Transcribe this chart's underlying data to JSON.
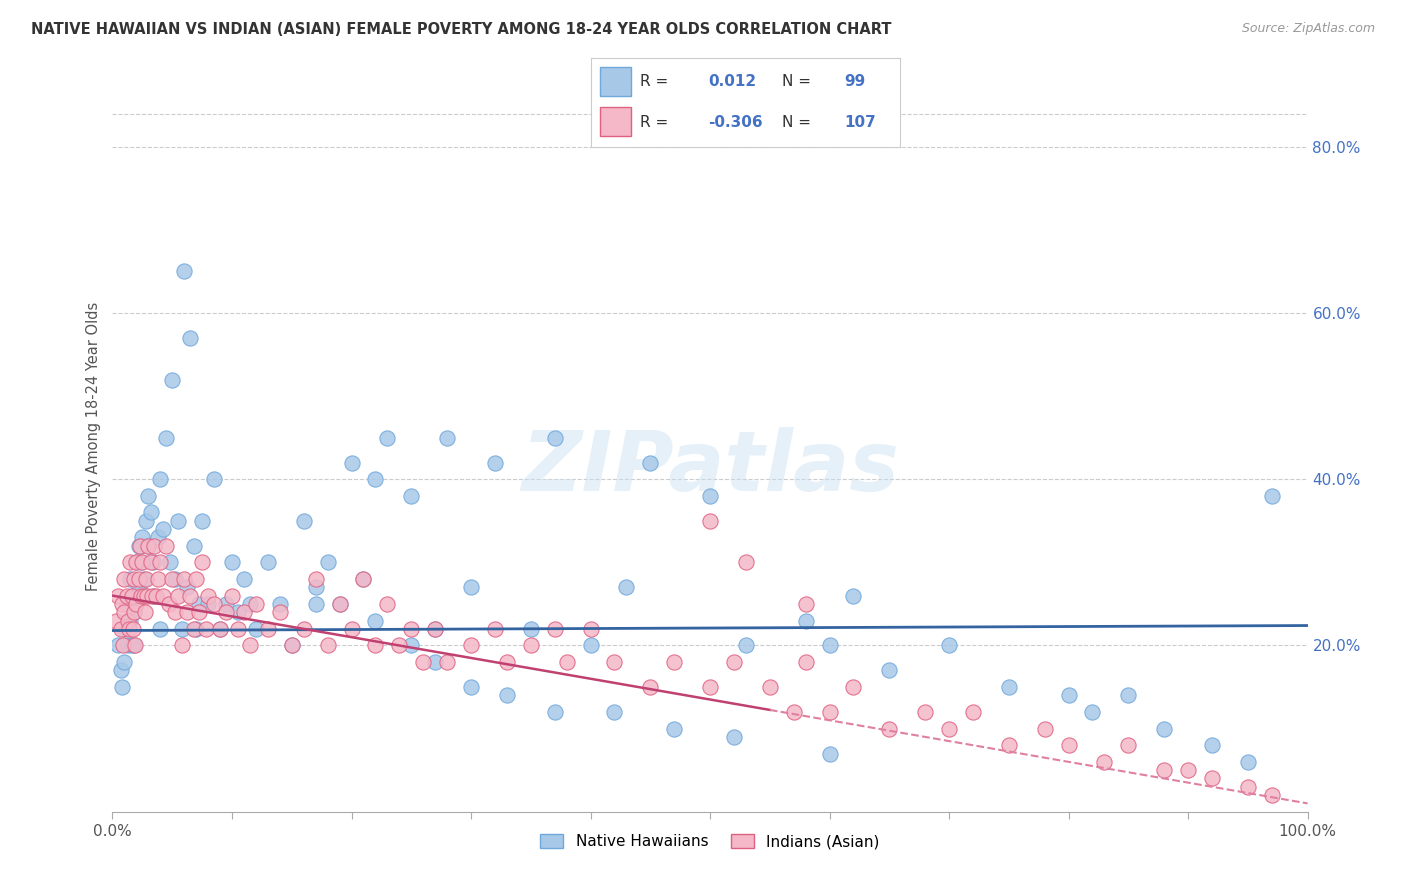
{
  "title": "NATIVE HAWAIIAN VS INDIAN (ASIAN) FEMALE POVERTY AMONG 18-24 YEAR OLDS CORRELATION CHART",
  "source": "Source: ZipAtlas.com",
  "ylabel": "Female Poverty Among 18-24 Year Olds",
  "xlim": [
    0,
    1.0
  ],
  "ylim": [
    0,
    0.88
  ],
  "right_yticks": [
    0.2,
    0.4,
    0.6,
    0.8
  ],
  "right_yticklabels": [
    "20.0%",
    "40.0%",
    "60.0%",
    "80.0%"
  ],
  "xticklabels_show": [
    "0.0%",
    "100.0%"
  ],
  "xticklabels_pos": [
    0.0,
    1.0
  ],
  "blue_marker_fill": "#a8c8e8",
  "blue_marker_edge": "#6fa8dc",
  "pink_marker_fill": "#f4b8c8",
  "pink_marker_edge": "#e06080",
  "trend_blue_color": "#3464a0",
  "trend_pink_solid_color": "#c04070",
  "trend_pink_dash_color": "#e080a0",
  "watermark": "ZIPatlas",
  "legend_label1": "Native Hawaiians",
  "legend_label2": "Indians (Asian)",
  "legend_R1": "0.012",
  "legend_N1": "99",
  "legend_R2": "-0.306",
  "legend_N2": "107",
  "grid_color": "#cccccc",
  "blue_x": [
    0.005,
    0.007,
    0.008,
    0.01,
    0.01,
    0.012,
    0.013,
    0.015,
    0.015,
    0.016,
    0.017,
    0.018,
    0.018,
    0.02,
    0.02,
    0.022,
    0.022,
    0.024,
    0.025,
    0.026,
    0.028,
    0.03,
    0.03,
    0.032,
    0.034,
    0.035,
    0.038,
    0.04,
    0.04,
    0.042,
    0.045,
    0.048,
    0.05,
    0.052,
    0.055,
    0.058,
    0.06,
    0.062,
    0.065,
    0.068,
    0.07,
    0.072,
    0.075,
    0.08,
    0.085,
    0.09,
    0.095,
    0.1,
    0.105,
    0.11,
    0.115,
    0.12,
    0.13,
    0.14,
    0.15,
    0.16,
    0.17,
    0.18,
    0.19,
    0.2,
    0.21,
    0.22,
    0.23,
    0.25,
    0.27,
    0.28,
    0.3,
    0.32,
    0.35,
    0.37,
    0.4,
    0.43,
    0.45,
    0.5,
    0.53,
    0.58,
    0.6,
    0.62,
    0.65,
    0.7,
    0.75,
    0.8,
    0.82,
    0.85,
    0.88,
    0.92,
    0.95,
    0.97,
    0.17,
    0.22,
    0.25,
    0.27,
    0.3,
    0.33,
    0.37,
    0.42,
    0.47,
    0.52,
    0.6
  ],
  "blue_y": [
    0.2,
    0.17,
    0.15,
    0.22,
    0.18,
    0.25,
    0.2,
    0.28,
    0.23,
    0.2,
    0.26,
    0.24,
    0.2,
    0.3,
    0.26,
    0.32,
    0.27,
    0.3,
    0.33,
    0.28,
    0.35,
    0.38,
    0.32,
    0.36,
    0.3,
    0.26,
    0.33,
    0.4,
    0.22,
    0.34,
    0.45,
    0.3,
    0.52,
    0.28,
    0.35,
    0.22,
    0.65,
    0.27,
    0.57,
    0.32,
    0.22,
    0.25,
    0.35,
    0.25,
    0.4,
    0.22,
    0.25,
    0.3,
    0.24,
    0.28,
    0.25,
    0.22,
    0.3,
    0.25,
    0.2,
    0.35,
    0.25,
    0.3,
    0.25,
    0.42,
    0.28,
    0.4,
    0.45,
    0.38,
    0.22,
    0.45,
    0.27,
    0.42,
    0.22,
    0.45,
    0.2,
    0.27,
    0.42,
    0.38,
    0.2,
    0.23,
    0.2,
    0.26,
    0.17,
    0.2,
    0.15,
    0.14,
    0.12,
    0.14,
    0.1,
    0.08,
    0.06,
    0.38,
    0.27,
    0.23,
    0.2,
    0.18,
    0.15,
    0.14,
    0.12,
    0.12,
    0.1,
    0.09,
    0.07
  ],
  "pink_x": [
    0.003,
    0.005,
    0.007,
    0.008,
    0.009,
    0.01,
    0.01,
    0.012,
    0.013,
    0.014,
    0.015,
    0.016,
    0.017,
    0.018,
    0.018,
    0.019,
    0.02,
    0.02,
    0.022,
    0.023,
    0.024,
    0.025,
    0.026,
    0.027,
    0.028,
    0.029,
    0.03,
    0.032,
    0.033,
    0.035,
    0.036,
    0.038,
    0.04,
    0.042,
    0.045,
    0.047,
    0.05,
    0.052,
    0.055,
    0.058,
    0.06,
    0.062,
    0.065,
    0.068,
    0.07,
    0.072,
    0.075,
    0.078,
    0.08,
    0.085,
    0.09,
    0.095,
    0.1,
    0.105,
    0.11,
    0.115,
    0.12,
    0.13,
    0.14,
    0.15,
    0.16,
    0.17,
    0.18,
    0.19,
    0.2,
    0.21,
    0.22,
    0.23,
    0.24,
    0.25,
    0.26,
    0.27,
    0.28,
    0.3,
    0.32,
    0.33,
    0.35,
    0.37,
    0.38,
    0.4,
    0.42,
    0.45,
    0.47,
    0.5,
    0.52,
    0.55,
    0.57,
    0.58,
    0.6,
    0.62,
    0.65,
    0.68,
    0.7,
    0.72,
    0.75,
    0.78,
    0.8,
    0.83,
    0.85,
    0.88,
    0.9,
    0.92,
    0.95,
    0.97,
    0.5,
    0.53,
    0.58
  ],
  "pink_y": [
    0.23,
    0.26,
    0.22,
    0.25,
    0.2,
    0.28,
    0.24,
    0.26,
    0.23,
    0.22,
    0.3,
    0.26,
    0.22,
    0.28,
    0.24,
    0.2,
    0.3,
    0.25,
    0.28,
    0.32,
    0.26,
    0.3,
    0.26,
    0.24,
    0.28,
    0.26,
    0.32,
    0.3,
    0.26,
    0.32,
    0.26,
    0.28,
    0.3,
    0.26,
    0.32,
    0.25,
    0.28,
    0.24,
    0.26,
    0.2,
    0.28,
    0.24,
    0.26,
    0.22,
    0.28,
    0.24,
    0.3,
    0.22,
    0.26,
    0.25,
    0.22,
    0.24,
    0.26,
    0.22,
    0.24,
    0.2,
    0.25,
    0.22,
    0.24,
    0.2,
    0.22,
    0.28,
    0.2,
    0.25,
    0.22,
    0.28,
    0.2,
    0.25,
    0.2,
    0.22,
    0.18,
    0.22,
    0.18,
    0.2,
    0.22,
    0.18,
    0.2,
    0.22,
    0.18,
    0.22,
    0.18,
    0.15,
    0.18,
    0.15,
    0.18,
    0.15,
    0.12,
    0.18,
    0.12,
    0.15,
    0.1,
    0.12,
    0.1,
    0.12,
    0.08,
    0.1,
    0.08,
    0.06,
    0.08,
    0.05,
    0.05,
    0.04,
    0.03,
    0.02,
    0.35,
    0.3,
    0.25
  ]
}
